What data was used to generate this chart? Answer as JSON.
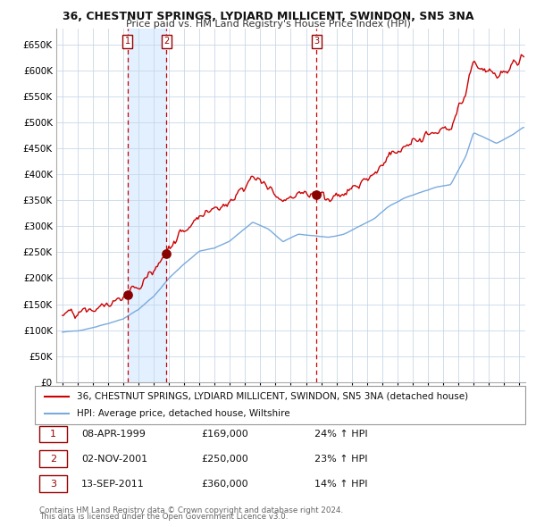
{
  "title": "36, CHESTNUT SPRINGS, LYDIARD MILLICENT, SWINDON, SN5 3NA",
  "subtitle": "Price paid vs. HM Land Registry's House Price Index (HPI)",
  "background_color": "#ffffff",
  "plot_bg_color": "#ffffff",
  "grid_color": "#c8d8e8",
  "sale_line_color": "#cc0000",
  "hpi_line_color": "#7aaadd",
  "sale_marker_color": "#880000",
  "vline_color": "#cc0000",
  "shade_color": "#ddeeff",
  "legend_label_sale": "36, CHESTNUT SPRINGS, LYDIARD MILLICENT, SWINDON, SN5 3NA (detached house)",
  "legend_label_hpi": "HPI: Average price, detached house, Wiltshire",
  "transactions": [
    {
      "num": 1,
      "date": "08-APR-1999",
      "year": 1999.27,
      "price": 169000,
      "pct": "24% ↑ HPI"
    },
    {
      "num": 2,
      "date": "02-NOV-2001",
      "year": 2001.84,
      "price": 250000,
      "pct": "23% ↑ HPI"
    },
    {
      "num": 3,
      "date": "13-SEP-2011",
      "year": 2011.7,
      "price": 360000,
      "pct": "14% ↑ HPI"
    }
  ],
  "footer1": "Contains HM Land Registry data © Crown copyright and database right 2024.",
  "footer2": "This data is licensed under the Open Government Licence v3.0.",
  "ylim": [
    0,
    680000
  ],
  "yticks": [
    0,
    50000,
    100000,
    150000,
    200000,
    250000,
    300000,
    350000,
    400000,
    450000,
    500000,
    550000,
    600000,
    650000
  ],
  "xlim_start": 1994.6,
  "xlim_end": 2025.4
}
